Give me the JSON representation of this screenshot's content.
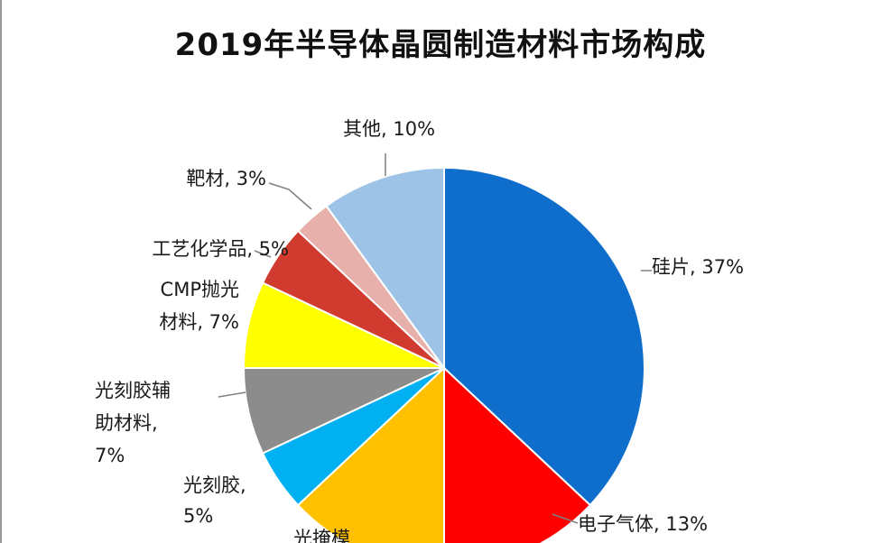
{
  "chart_data": {
    "type": "pie",
    "title": "2019年半导体晶圆制造材料市场构成",
    "slices": [
      {
        "name": "硅片",
        "value": 37,
        "label_lines": [
          "硅片, 37%"
        ],
        "color": "#0F6ECC"
      },
      {
        "name": "电子气体",
        "value": 13,
        "label_lines": [
          "电子气体, 13%"
        ],
        "color": "#FF0000"
      },
      {
        "name": "光掩模",
        "value": 13,
        "label_lines": [
          "光掩模"
        ],
        "color": "#FFC000"
      },
      {
        "name": "光刻胶",
        "value": 5,
        "label_lines": [
          "光刻胶,",
          "5%"
        ],
        "color": "#00B0F0"
      },
      {
        "name": "光刻胶辅助材料",
        "value": 7,
        "label_lines": [
          "光刻胶辅",
          "助材料,",
          "7%"
        ],
        "color": "#8C8C8C"
      },
      {
        "name": "CMP抛光材料",
        "value": 7,
        "label_lines": [
          "CMP抛光",
          "材料, 7%"
        ],
        "color": "#FFFF00"
      },
      {
        "name": "工艺化学品",
        "value": 5,
        "label_lines": [
          "工艺化学品, 5%"
        ],
        "color": "#D13B2F"
      },
      {
        "name": "靶材",
        "value": 3,
        "label_lines": [
          "靶材, 3%"
        ],
        "color": "#E8B0AA"
      },
      {
        "name": "其他",
        "value": 10,
        "label_lines": [
          "其他, 10%"
        ],
        "color": "#9DC3E6"
      }
    ]
  }
}
